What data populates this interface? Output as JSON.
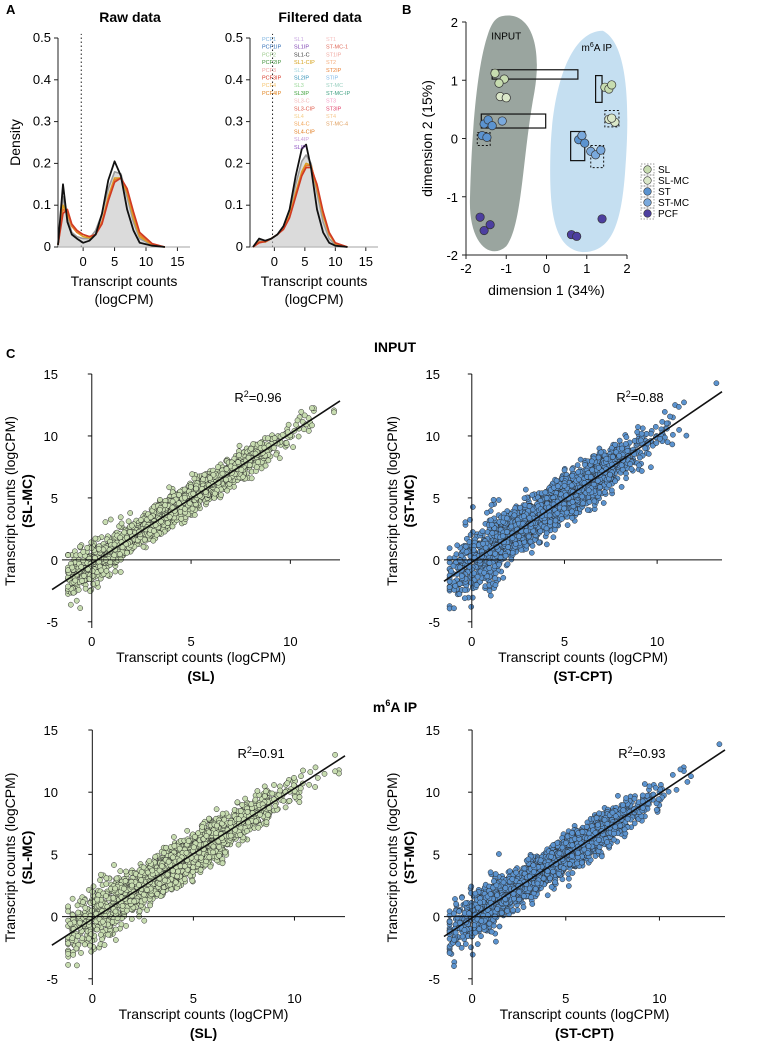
{
  "colors": {
    "sl": "#c7dcb0",
    "sl_mc": "#dbe8c9",
    "st": "#5b93cf",
    "st_mc": "#7aa9dc",
    "pcf": "#4d3fa0",
    "input_region": "#9aa59f",
    "ip_region": "#c5dff1",
    "line": "#111111",
    "dotted": "#555555"
  },
  "panel_labels": {
    "a": "A",
    "b": "B",
    "c": "C"
  },
  "chart_data": [
    {
      "id": "raw",
      "type": "line",
      "title": "Raw data",
      "xlabel": "Transcript counts",
      "xlabel2": "(logCPM)",
      "ylabel": "Density",
      "xlim": [
        -4,
        17
      ],
      "ylim": [
        0,
        0.5
      ],
      "xticks": [
        0,
        5,
        10,
        15
      ],
      "yticks": [
        0,
        0.1,
        0.2,
        0.3,
        0.4,
        0.5
      ],
      "ytick_labels": [
        "0",
        "0.1",
        "0.2",
        "0.3",
        "0.4",
        "0.5"
      ],
      "vline_x": -0.3,
      "series": [
        {
          "name": "black",
          "color": "#111111",
          "x": [
            -4,
            -3.2,
            -2.5,
            -1.8,
            -1,
            0,
            1,
            2,
            3,
            4,
            5,
            6,
            7,
            8,
            9,
            11,
            13
          ],
          "y": [
            0.005,
            0.15,
            0.06,
            0.03,
            0.02,
            0.01,
            0.015,
            0.03,
            0.08,
            0.16,
            0.205,
            0.17,
            0.09,
            0.04,
            0.01,
            0.003,
            0.0
          ]
        },
        {
          "name": "grey",
          "color": "#9a9a9a",
          "x": [
            -4,
            -3.2,
            -2.5,
            -1.8,
            -1,
            0,
            1,
            2,
            3,
            4,
            5,
            6,
            7,
            8,
            9,
            11,
            13
          ],
          "y": [
            0.005,
            0.12,
            0.07,
            0.035,
            0.025,
            0.02,
            0.02,
            0.04,
            0.08,
            0.14,
            0.18,
            0.175,
            0.12,
            0.06,
            0.02,
            0.004,
            0.0
          ]
        },
        {
          "name": "gold",
          "color": "#d9a020",
          "x": [
            -4,
            -3.2,
            -2.5,
            -1.8,
            -1,
            0,
            1,
            2,
            3,
            4,
            5,
            6,
            7,
            8,
            9,
            11,
            13
          ],
          "y": [
            0.005,
            0.1,
            0.08,
            0.05,
            0.035,
            0.025,
            0.022,
            0.03,
            0.06,
            0.12,
            0.165,
            0.165,
            0.13,
            0.07,
            0.025,
            0.005,
            0.0
          ]
        },
        {
          "name": "orange",
          "color": "#e8762a",
          "x": [
            -4,
            -3.2,
            -2.5,
            -1.8,
            -1,
            0,
            1,
            2,
            3,
            4,
            5,
            6,
            7,
            8,
            9,
            11,
            13
          ],
          "y": [
            0.005,
            0.09,
            0.085,
            0.05,
            0.035,
            0.03,
            0.025,
            0.03,
            0.06,
            0.115,
            0.16,
            0.165,
            0.135,
            0.08,
            0.03,
            0.006,
            0.0
          ]
        },
        {
          "name": "red",
          "color": "#cf3a22",
          "x": [
            -4,
            -3.2,
            -2.5,
            -1.8,
            -1,
            0,
            1,
            2,
            3,
            4,
            5,
            6,
            7,
            8,
            9,
            11,
            13
          ],
          "y": [
            0.005,
            0.08,
            0.09,
            0.055,
            0.04,
            0.03,
            0.025,
            0.03,
            0.055,
            0.11,
            0.155,
            0.165,
            0.14,
            0.085,
            0.035,
            0.008,
            0.0
          ]
        }
      ]
    },
    {
      "id": "filtered",
      "type": "line",
      "title": "Filtered data",
      "xlabel": "Transcript counts",
      "xlabel2": "(logCPM)",
      "ylabel": "",
      "xlim": [
        -4,
        17
      ],
      "ylim": [
        0,
        0.5
      ],
      "xticks": [
        0,
        5,
        10,
        15
      ],
      "yticks": [
        0,
        0.1,
        0.2,
        0.3,
        0.4,
        0.5
      ],
      "ytick_labels": [
        "0",
        "0.1",
        "0.2",
        "0.3",
        "0.4",
        "0.5"
      ],
      "vline_x": -0.3,
      "series": [
        {
          "name": "black",
          "color": "#111111",
          "x": [
            -3.5,
            -2.5,
            -1.5,
            -0.5,
            0.5,
            1.5,
            2.5,
            3.5,
            4.5,
            5.2,
            6,
            7,
            8,
            9,
            10,
            12
          ],
          "y": [
            0.0,
            0.02,
            0.015,
            0.02,
            0.03,
            0.05,
            0.09,
            0.17,
            0.235,
            0.245,
            0.19,
            0.09,
            0.035,
            0.01,
            0.003,
            0.0
          ]
        },
        {
          "name": "grey",
          "color": "#9a9a9a",
          "x": [
            -3.5,
            -2.5,
            -1.5,
            -0.5,
            0.5,
            1.5,
            2.5,
            3.5,
            4.5,
            5.2,
            6,
            7,
            8,
            9,
            10,
            12
          ],
          "y": [
            0.0,
            0.015,
            0.012,
            0.02,
            0.03,
            0.05,
            0.085,
            0.15,
            0.205,
            0.22,
            0.2,
            0.13,
            0.06,
            0.02,
            0.005,
            0.0
          ]
        },
        {
          "name": "gold",
          "color": "#d9a020",
          "x": [
            -3.5,
            -2.5,
            -1.5,
            -0.5,
            0.5,
            1.5,
            2.5,
            3.5,
            4.5,
            5.2,
            6,
            7,
            8,
            9,
            10,
            12
          ],
          "y": [
            0.0,
            0.012,
            0.012,
            0.02,
            0.03,
            0.045,
            0.075,
            0.13,
            0.18,
            0.2,
            0.195,
            0.14,
            0.075,
            0.03,
            0.008,
            0.0
          ]
        },
        {
          "name": "orange",
          "color": "#e8762a",
          "x": [
            -3.5,
            -2.5,
            -1.5,
            -0.5,
            0.5,
            1.5,
            2.5,
            3.5,
            4.5,
            5.2,
            6,
            7,
            8,
            9,
            10,
            12
          ],
          "y": [
            0.0,
            0.012,
            0.013,
            0.02,
            0.03,
            0.045,
            0.072,
            0.125,
            0.175,
            0.195,
            0.195,
            0.145,
            0.08,
            0.032,
            0.009,
            0.0
          ]
        },
        {
          "name": "red",
          "color": "#cf3a22",
          "x": [
            -3.5,
            -2.5,
            -1.5,
            -0.5,
            0.5,
            1.5,
            2.5,
            3.5,
            4.5,
            5.2,
            6,
            7,
            8,
            9,
            10,
            12
          ],
          "y": [
            0.0,
            0.01,
            0.013,
            0.02,
            0.03,
            0.042,
            0.07,
            0.12,
            0.17,
            0.19,
            0.19,
            0.15,
            0.085,
            0.035,
            0.01,
            0.0
          ]
        }
      ],
      "legend_columns": [
        [
          {
            "label": "PCF1",
            "color": "#7db3e0"
          },
          {
            "label": "PCF1IP",
            "color": "#2f6db5"
          },
          {
            "label": "PCF2",
            "color": "#9bc98a"
          },
          {
            "label": "PCF2IP",
            "color": "#3e8f3a"
          },
          {
            "label": "PCF3",
            "color": "#f2a3a3"
          },
          {
            "label": "PCF3IP",
            "color": "#d63a2a"
          },
          {
            "label": "PCF4",
            "color": "#f5c26b"
          },
          {
            "label": "PCF4IP",
            "color": "#e0821c"
          }
        ],
        [
          {
            "label": "SL1",
            "color": "#c7a6e0"
          },
          {
            "label": "SL1IP",
            "color": "#7b3fb0"
          },
          {
            "label": "SL1-C",
            "color": "#333333"
          },
          {
            "label": "SL1-CIP",
            "color": "#d4a017"
          },
          {
            "label": "SL2",
            "color": "#a6d8e0"
          },
          {
            "label": "SL2IP",
            "color": "#2f8fb5"
          },
          {
            "label": "SL3",
            "color": "#9bd89a"
          },
          {
            "label": "SL3IP",
            "color": "#3ea03a"
          },
          {
            "label": "SL3-C",
            "color": "#f5b8b8"
          },
          {
            "label": "SL3-CIP",
            "color": "#e05a4a"
          },
          {
            "label": "SL4",
            "color": "#f5d08a"
          },
          {
            "label": "SL4-C",
            "color": "#f0a050"
          },
          {
            "label": "SL4-CIP",
            "color": "#e07a1c"
          },
          {
            "label": "SL4IP",
            "color": "#c89ad8"
          },
          {
            "label": "SLIP",
            "color": "#8a4fc0"
          }
        ],
        [
          {
            "label": "ST1",
            "color": "#f5c2c2"
          },
          {
            "label": "ST-MC-1",
            "color": "#e06a5a"
          },
          {
            "label": "ST1IP",
            "color": "#f0a8a0"
          },
          {
            "label": "ST2",
            "color": "#f5b080"
          },
          {
            "label": "ST2IP",
            "color": "#e8823a"
          },
          {
            "label": "STIP",
            "color": "#7fb8e8"
          },
          {
            "label": "ST-MC",
            "color": "#9ad0c0"
          },
          {
            "label": "ST-MC-IP",
            "color": "#3ea080"
          },
          {
            "label": "ST3",
            "color": "#f5a0c8"
          },
          {
            "label": "ST3IP",
            "color": "#e0406a"
          },
          {
            "label": "ST4",
            "color": "#f5c890"
          },
          {
            "label": "ST-MC-4",
            "color": "#e0a060"
          }
        ]
      ]
    },
    {
      "id": "mds",
      "type": "scatter",
      "title": "",
      "xlabel": "dimension 1 (34%)",
      "ylabel": "dimension 2 (15%)",
      "xlim": [
        -2,
        2
      ],
      "ylim": [
        -2,
        2
      ],
      "xticks": [
        -2,
        -1,
        0,
        1,
        2
      ],
      "yticks": [
        -2,
        -1,
        0,
        1,
        2
      ],
      "group_labels": {
        "input": "INPUT",
        "ip_prefix": "m",
        "ip_sup": "6",
        "ip_suffix": "A IP"
      },
      "legend": [
        {
          "label": "SL",
          "color": "#c7dcb0"
        },
        {
          "label": "SL-MC",
          "color": "#dbe8c9"
        },
        {
          "label": "ST",
          "color": "#5b93cf"
        },
        {
          "label": "ST-MC",
          "color": "#7aa9dc"
        },
        {
          "label": "PCF",
          "color": "#4d3fa0"
        }
      ],
      "series": [
        {
          "name": "SL",
          "color": "#c7dcb0",
          "points": [
            [
              -1.28,
              1.12
            ],
            [
              -1.05,
              1.02
            ],
            [
              -1.18,
              0.95
            ],
            [
              1.45,
              0.88
            ],
            [
              1.55,
              0.85
            ],
            [
              1.62,
              0.92
            ]
          ]
        },
        {
          "name": "SL-MC",
          "color": "#dbe8c9",
          "points": [
            [
              -1.15,
              0.72
            ],
            [
              -1.0,
              0.7
            ],
            [
              1.55,
              0.33
            ],
            [
              1.7,
              0.28
            ],
            [
              1.62,
              0.35
            ]
          ]
        },
        {
          "name": "ST",
          "color": "#5b93cf",
          "points": [
            [
              -1.55,
              0.25
            ],
            [
              -1.45,
              0.32
            ],
            [
              -1.35,
              0.22
            ],
            [
              -1.6,
              0.05
            ],
            [
              -1.48,
              0.02
            ],
            [
              0.8,
              -0.02
            ],
            [
              0.95,
              -0.08
            ]
          ]
        },
        {
          "name": "ST-MC",
          "color": "#7aa9dc",
          "points": [
            [
              -1.1,
              0.3
            ],
            [
              0.88,
              0.05
            ],
            [
              1.1,
              -0.22
            ],
            [
              1.22,
              -0.28
            ],
            [
              1.35,
              -0.2
            ]
          ]
        },
        {
          "name": "PCF",
          "color": "#4d3fa0",
          "points": [
            [
              -1.65,
              -1.35
            ],
            [
              -1.55,
              -1.58
            ],
            [
              -1.4,
              -1.48
            ],
            [
              0.62,
              -1.65
            ],
            [
              0.75,
              -1.68
            ],
            [
              1.38,
              -1.38
            ]
          ]
        }
      ],
      "solid_boxes": [
        [
          -1.35,
          0.78,
          1.02,
          1.18
        ],
        [
          -1.62,
          -0.02,
          0.18,
          0.42
        ],
        [
          1.22,
          1.38,
          0.62,
          1.08
        ],
        [
          0.6,
          0.95,
          -0.38,
          0.12
        ]
      ],
      "dotted_boxes": [
        [
          -1.22,
          0.62,
          0.95,
          0.82
        ],
        [
          -1.72,
          -1.4,
          -0.12,
          0.1
        ],
        [
          1.45,
          1.8,
          0.2,
          0.48
        ],
        [
          1.1,
          1.42,
          -0.5,
          -0.12
        ]
      ]
    },
    {
      "id": "input_sl",
      "type": "scatter",
      "title": "",
      "xlabel": "Transcript counts (logCPM)",
      "xsub": "(SL)",
      "ylabel": "Transcript counts (logCPM)",
      "ysub": "(SL-MC)",
      "r2_label": "R",
      "r2_value": "=0.96",
      "xlim": [
        -1.5,
        12.5
      ],
      "ylim": [
        -5.5,
        15
      ],
      "xticks": [
        0,
        5,
        10
      ],
      "yticks": [
        -5,
        0,
        5,
        10,
        15
      ],
      "fit": {
        "slope": 1.05,
        "intercept": -0.3,
        "x_range": [
          -2,
          12.5
        ]
      },
      "point_color": "#c7dcb0",
      "n_points": 2600,
      "x_mean": 4.5,
      "x_sd": 2.3,
      "noise_sd": 0.55,
      "seed": 11
    },
    {
      "id": "input_st",
      "type": "scatter",
      "title": "",
      "xlabel": "Transcript counts (logCPM)",
      "xsub": "(ST-CPT)",
      "ylabel": "Transcript counts (logCPM)",
      "ysub": "(ST-MC)",
      "r2_label": "R",
      "r2_value": "=0.88",
      "xlim": [
        -1.5,
        13.5
      ],
      "ylim": [
        -5.5,
        15
      ],
      "xticks": [
        0,
        5,
        10
      ],
      "yticks": [
        -5,
        0,
        5,
        10,
        15
      ],
      "fit": {
        "slope": 1.02,
        "intercept": -0.2,
        "x_range": [
          -1.5,
          13.5
        ]
      },
      "point_color": "#5b93cf",
      "n_points": 2600,
      "x_mean": 4.5,
      "x_sd": 2.3,
      "noise_sd": 0.85,
      "seed": 23
    },
    {
      "id": "ip_sl",
      "type": "scatter",
      "title": "",
      "xlabel": "Transcript counts (logCPM)",
      "xsub": "(SL)",
      "ylabel": "Transcript counts (logCPM)",
      "ysub": "(SL-MC)",
      "r2_label": "R",
      "r2_value": "=0.91",
      "xlim": [
        -1.5,
        12.5
      ],
      "ylim": [
        -5.5,
        15
      ],
      "xticks": [
        0,
        5,
        10
      ],
      "yticks": [
        -5,
        0,
        5,
        10,
        15
      ],
      "fit": {
        "slope": 1.05,
        "intercept": -0.2,
        "x_range": [
          -2,
          12.5
        ]
      },
      "point_color": "#c7dcb0",
      "n_points": 2600,
      "x_mean": 4.5,
      "x_sd": 2.3,
      "noise_sd": 0.75,
      "seed": 37
    },
    {
      "id": "ip_st",
      "type": "scatter",
      "title": "",
      "xlabel": "Transcript counts (logCPM)",
      "xsub": "(ST-CPT)",
      "ylabel": "Transcript counts (logCPM)",
      "ysub": "(ST-MC)",
      "r2_label": "R",
      "r2_value": "=0.93",
      "xlim": [
        -1.5,
        13.5
      ],
      "ylim": [
        -5.5,
        15
      ],
      "xticks": [
        0,
        5,
        10
      ],
      "yticks": [
        -5,
        0,
        5,
        10,
        15
      ],
      "fit": {
        "slope": 1.0,
        "intercept": -0.1,
        "x_range": [
          -1.5,
          13.5
        ]
      },
      "point_color": "#5b93cf",
      "n_points": 2600,
      "x_mean": 4.5,
      "x_sd": 2.3,
      "noise_sd": 0.7,
      "seed": 53
    }
  ],
  "section_titles": {
    "input": "INPUT",
    "ip_prefix": "m",
    "ip_sup": "6",
    "ip_suffix": "A IP"
  }
}
